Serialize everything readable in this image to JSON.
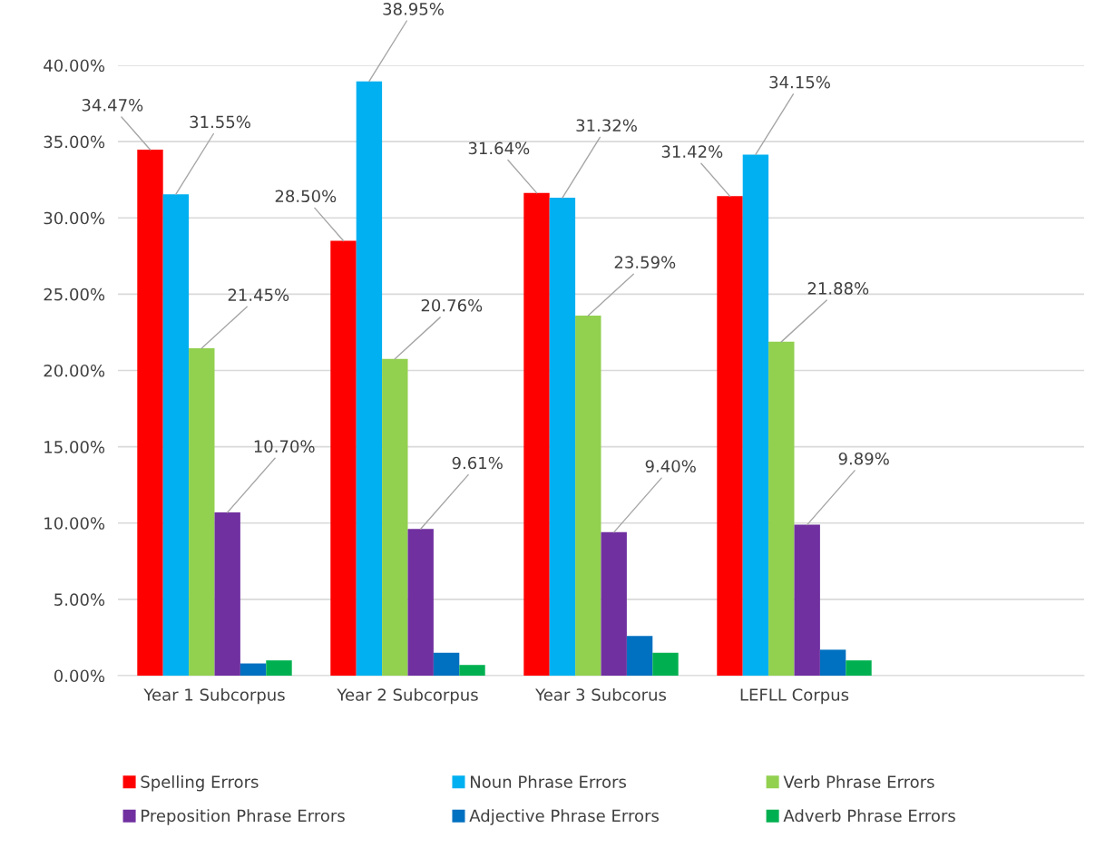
{
  "chart_data": {
    "type": "bar",
    "categories": [
      "Year 1 Subcorpus",
      "Year 2 Subcorpus",
      "Year 3 Subcorus",
      "LEFLL Corpus",
      null
    ],
    "series": [
      {
        "name": "Spelling Errors",
        "color": "#ff0000",
        "values": [
          34.47,
          28.5,
          31.64,
          31.42,
          null
        ],
        "value_labels": [
          "34.47%",
          "28.50%",
          "31.64%",
          "31.42%",
          null
        ]
      },
      {
        "name": "Noun Phrase Errors",
        "color": "#00b0f0",
        "values": [
          31.55,
          38.95,
          31.32,
          34.15,
          null
        ],
        "value_labels": [
          "31.55%",
          "38.95%",
          "31.32%",
          "34.15%",
          null
        ]
      },
      {
        "name": "Verb Phrase Errors",
        "color": "#92d050",
        "values": [
          21.45,
          20.76,
          23.59,
          21.88,
          null
        ],
        "value_labels": [
          "21.45%",
          "20.76%",
          "23.59%",
          "21.88%",
          null
        ]
      },
      {
        "name": "Preposition Phrase Errors",
        "color": "#7030a0",
        "values": [
          10.7,
          9.61,
          9.4,
          9.89,
          null
        ],
        "value_labels": [
          "10.70%",
          "9.61%",
          "9.40%",
          "9.89%",
          null
        ]
      },
      {
        "name": "Adjective Phrase Errors",
        "color": "#0070c0",
        "values": [
          0.8,
          1.5,
          2.6,
          1.7,
          null
        ]
      },
      {
        "name": "Adverb Phrase Errors",
        "color": "#00b050",
        "values": [
          1.0,
          0.7,
          1.5,
          1.0,
          null
        ]
      }
    ],
    "ylim": [
      0,
      40
    ],
    "yticks": [
      {
        "value": 0,
        "label": "0.00%"
      },
      {
        "value": 5,
        "label": "5.00%"
      },
      {
        "value": 10,
        "label": "10.00%"
      },
      {
        "value": 15,
        "label": "15.00%"
      },
      {
        "value": 20,
        "label": "20.00%"
      },
      {
        "value": 25,
        "label": "25.00%"
      },
      {
        "value": 30,
        "label": "30.00%"
      },
      {
        "value": 35,
        "label": "35.00%"
      },
      {
        "value": 40,
        "label": "40.00%"
      }
    ],
    "grid": "y",
    "legend": "bottom"
  }
}
